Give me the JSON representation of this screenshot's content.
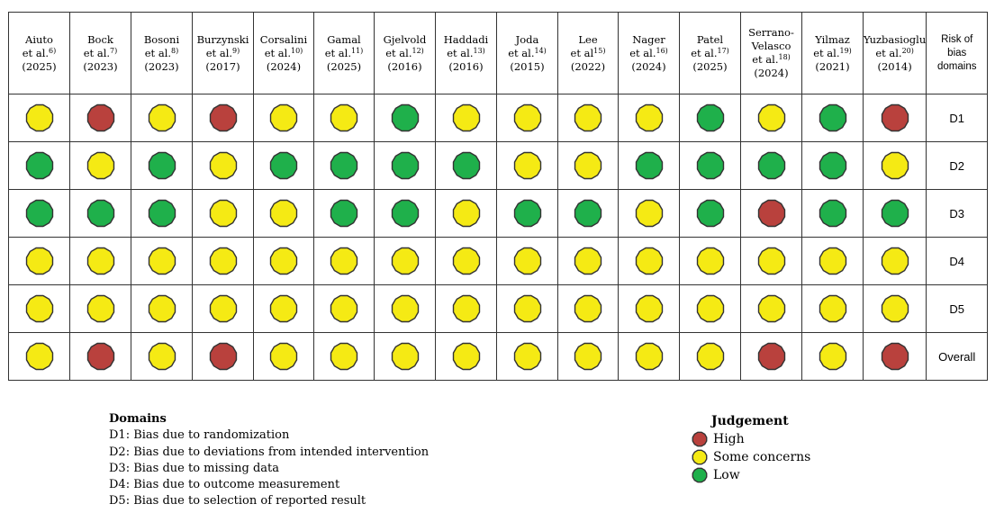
{
  "colors": {
    "high": "#b9413d",
    "some": "#f5ea14",
    "low": "#1fb04b"
  },
  "header_last": [
    "Risk of",
    "bias",
    "domains"
  ],
  "studies": [
    {
      "lines": [
        [
          "Aiuto",
          ""
        ],
        [
          "et al.",
          "6)"
        ],
        [
          "(2025)",
          ""
        ]
      ]
    },
    {
      "lines": [
        [
          "Bock",
          ""
        ],
        [
          "et al.",
          "7)"
        ],
        [
          "(2023)",
          ""
        ]
      ]
    },
    {
      "lines": [
        [
          "Bosoni",
          ""
        ],
        [
          "et al.",
          "8)"
        ],
        [
          "(2023)",
          ""
        ]
      ]
    },
    {
      "lines": [
        [
          "Burzynski",
          ""
        ],
        [
          "et al.",
          "9)"
        ],
        [
          "(2017)",
          ""
        ]
      ]
    },
    {
      "lines": [
        [
          "Corsalini",
          ""
        ],
        [
          "et al.",
          "10)"
        ],
        [
          "(2024)",
          ""
        ]
      ]
    },
    {
      "lines": [
        [
          "Gamal",
          ""
        ],
        [
          "et al.",
          "11)"
        ],
        [
          "(2025)",
          ""
        ]
      ]
    },
    {
      "lines": [
        [
          "Gjelvold",
          ""
        ],
        [
          "et al.",
          "12)"
        ],
        [
          "(2016)",
          ""
        ]
      ]
    },
    {
      "lines": [
        [
          "Haddadi",
          ""
        ],
        [
          "et al.",
          "13)"
        ],
        [
          "(2016)",
          ""
        ]
      ]
    },
    {
      "lines": [
        [
          "Joda",
          ""
        ],
        [
          "et al.",
          "14)"
        ],
        [
          "(2015)",
          ""
        ]
      ]
    },
    {
      "lines": [
        [
          "Lee",
          ""
        ],
        [
          "et al",
          "15)"
        ],
        [
          "(2022)",
          ""
        ]
      ]
    },
    {
      "lines": [
        [
          "Nager",
          ""
        ],
        [
          "et al.",
          "16)"
        ],
        [
          "(2024)",
          ""
        ]
      ]
    },
    {
      "lines": [
        [
          "Patel",
          ""
        ],
        [
          "et al.",
          "17)"
        ],
        [
          "(2025)",
          ""
        ]
      ]
    },
    {
      "lines": [
        [
          "Serrano-",
          ""
        ],
        [
          "Velasco",
          ""
        ],
        [
          "et al.",
          "18)"
        ],
        [
          "(2024)",
          ""
        ]
      ]
    },
    {
      "lines": [
        [
          "Yilmaz",
          ""
        ],
        [
          "et al.",
          "19)"
        ],
        [
          "(2021)",
          ""
        ]
      ]
    },
    {
      "lines": [
        [
          "Yuzbasioglu",
          ""
        ],
        [
          "et al.",
          "20)"
        ],
        [
          "(2014)",
          ""
        ]
      ]
    }
  ],
  "rows": [
    {
      "label": "D1",
      "values": [
        "some",
        "high",
        "some",
        "high",
        "some",
        "some",
        "low",
        "some",
        "some",
        "some",
        "some",
        "low",
        "some",
        "low",
        "high"
      ]
    },
    {
      "label": "D2",
      "values": [
        "low",
        "some",
        "low",
        "some",
        "low",
        "low",
        "low",
        "low",
        "some",
        "some",
        "low",
        "low",
        "low",
        "low",
        "some"
      ]
    },
    {
      "label": "D3",
      "values": [
        "low",
        "low",
        "low",
        "some",
        "some",
        "low",
        "low",
        "some",
        "low",
        "low",
        "some",
        "low",
        "high",
        "low",
        "low"
      ]
    },
    {
      "label": "D4",
      "values": [
        "some",
        "some",
        "some",
        "some",
        "some",
        "some",
        "some",
        "some",
        "some",
        "some",
        "some",
        "some",
        "some",
        "some",
        "some"
      ]
    },
    {
      "label": "D5",
      "values": [
        "some",
        "some",
        "some",
        "some",
        "some",
        "some",
        "some",
        "some",
        "some",
        "some",
        "some",
        "some",
        "some",
        "some",
        "some"
      ]
    },
    {
      "label": "Overall",
      "values": [
        "some",
        "high",
        "some",
        "high",
        "some",
        "some",
        "some",
        "some",
        "some",
        "some",
        "some",
        "some",
        "high",
        "some",
        "high"
      ]
    }
  ],
  "legend_domains": {
    "title": "Domains",
    "items": [
      "D1: Bias due to randomization",
      "D2: Bias due to deviations from intended intervention",
      "D3: Bias due to missing data",
      "D4: Bias due to outcome measurement",
      "D5: Bias due to selection of reported result"
    ]
  },
  "legend_judgement": {
    "title": "Judgement",
    "items": [
      {
        "key": "high",
        "label": "High"
      },
      {
        "key": "some",
        "label": "Some concerns"
      },
      {
        "key": "low",
        "label": "Low"
      }
    ]
  }
}
